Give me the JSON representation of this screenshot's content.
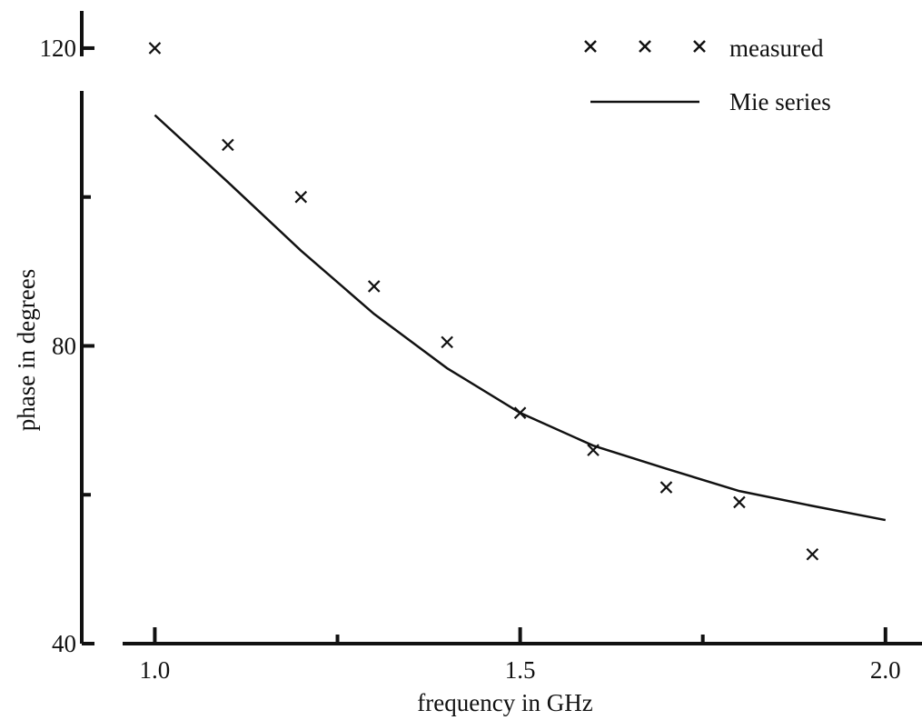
{
  "chart_data": {
    "type": "scatter",
    "x_label": "frequency in GHz",
    "y_label": "phase in degrees",
    "xlim": [
      0.9,
      2.05
    ],
    "ylim": [
      40,
      125
    ],
    "xticks": [
      {
        "value": 1,
        "label": "1.0"
      },
      {
        "value": 1.5,
        "label": "1.5"
      },
      {
        "value": 2,
        "label": "2.0"
      }
    ],
    "yticks": [
      40,
      80,
      120
    ],
    "xminor_ticks": [
      1.25,
      1.75
    ],
    "yminor_ticks": [
      60,
      100
    ],
    "legend": "upper right",
    "series": [
      {
        "name": "measured",
        "kind": "marker",
        "color": "#111111",
        "x": [
          1.0,
          1.1,
          1.2,
          1.3,
          1.4,
          1.5,
          1.6,
          1.7,
          1.8,
          1.9
        ],
        "values": [
          120,
          107,
          100,
          88,
          80.5,
          71,
          66,
          61,
          59,
          52
        ]
      },
      {
        "name": "Mie series",
        "kind": "line",
        "color": "#111111",
        "x": [
          1.0,
          1.1,
          1.2,
          1.3,
          1.4,
          1.5,
          1.6,
          1.7,
          1.8,
          1.9,
          2.0
        ],
        "values": [
          111,
          102,
          92.8,
          84.3,
          77,
          71,
          66.6,
          63.5,
          60.5,
          58.5,
          56.6
        ]
      }
    ]
  }
}
